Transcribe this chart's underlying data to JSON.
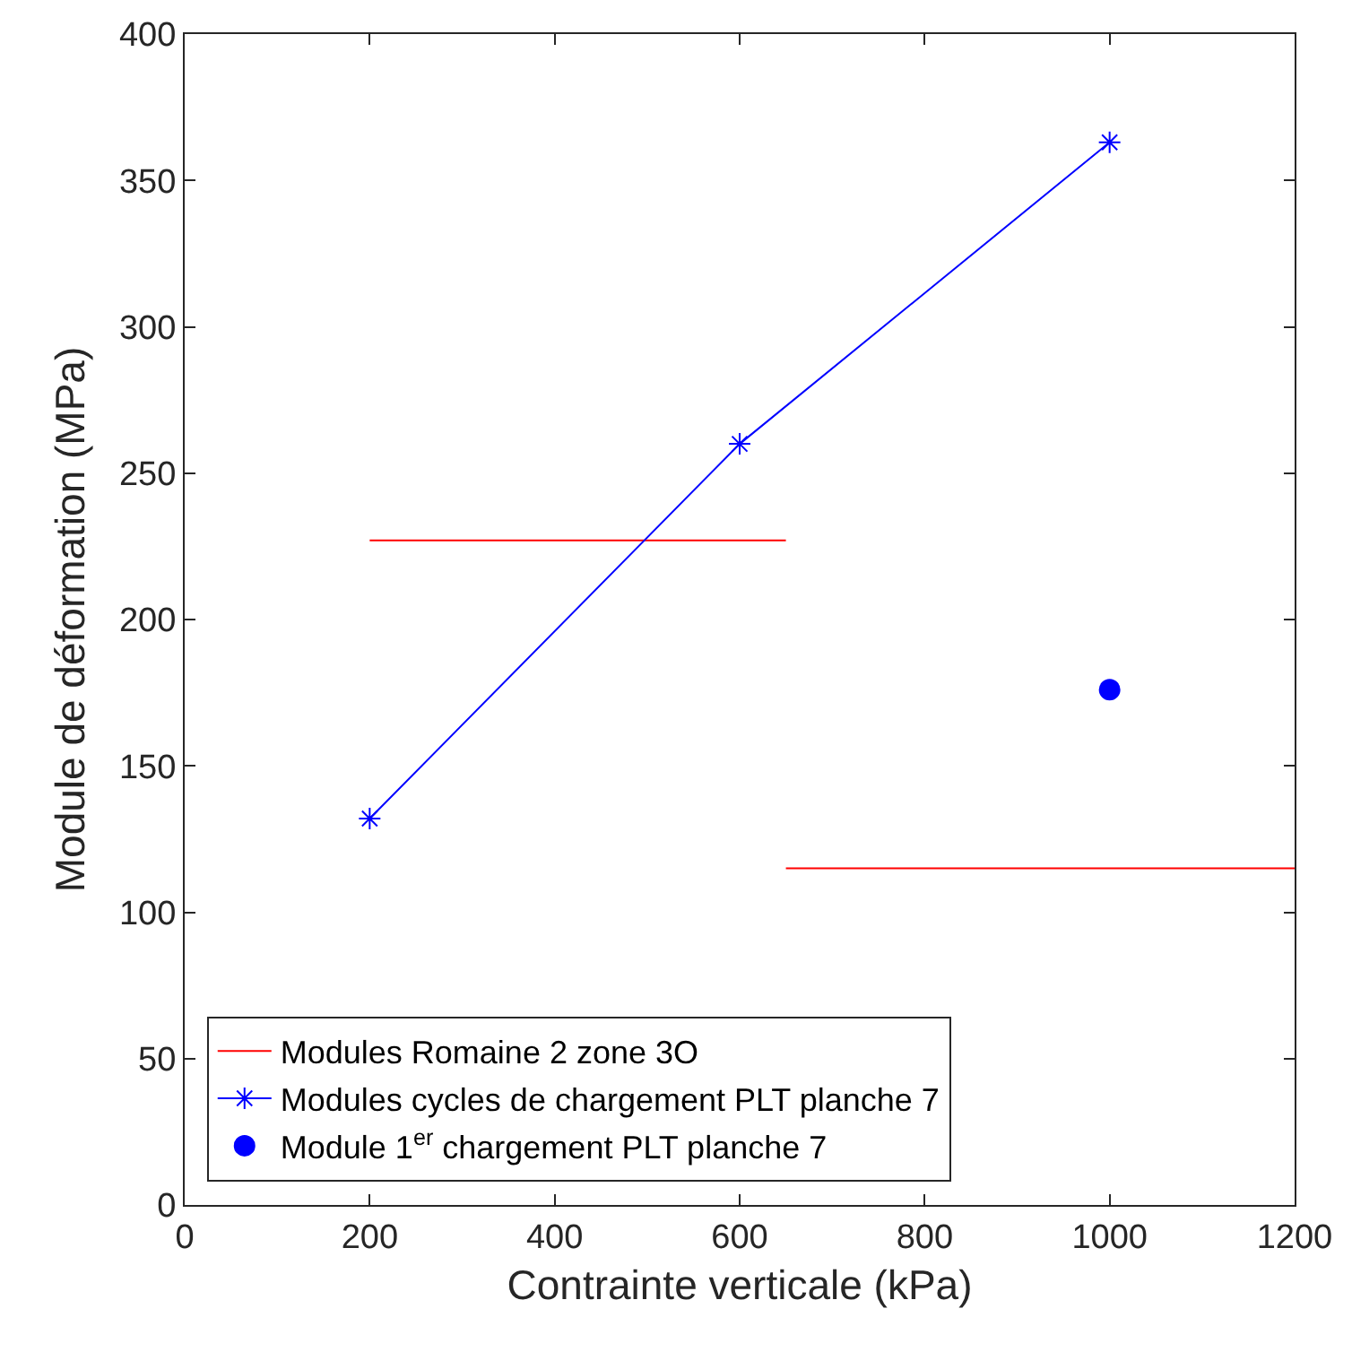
{
  "chart_data": {
    "type": "line",
    "xlabel": "Contrainte verticale (kPa)",
    "ylabel": "Module de déformation (MPa)",
    "xlim": [
      0,
      1200
    ],
    "xticks": [
      0,
      200,
      400,
      600,
      800,
      1000,
      1200
    ],
    "ylim": [
      0,
      400
    ],
    "yticks": [
      0,
      50,
      100,
      150,
      200,
      250,
      300,
      350,
      400
    ],
    "grid": false,
    "legend": "bottom left",
    "series": [
      {
        "name": "Modules Romaine 2 zone 3O",
        "color": "#ff0000",
        "marker": "none",
        "x": [
          200,
          650
        ],
        "values": [
          227,
          227
        ]
      },
      {
        "color": "#ff0000",
        "marker": "none",
        "x": [
          650,
          1200
        ],
        "values": [
          115,
          115
        ]
      },
      {
        "name": "Modules cycles de chargement PLT planche 7",
        "color": "#0000ff",
        "marker": "cross",
        "x": [
          200,
          600,
          1000
        ],
        "values": [
          132,
          260,
          363
        ]
      },
      {
        "name": "Module 1$^{er}$ chargement PLT planche 7",
        "type": "scatter",
        "color": "#0000ff",
        "marker": "circle",
        "x": [
          1000
        ],
        "values": [
          176
        ]
      }
    ]
  }
}
